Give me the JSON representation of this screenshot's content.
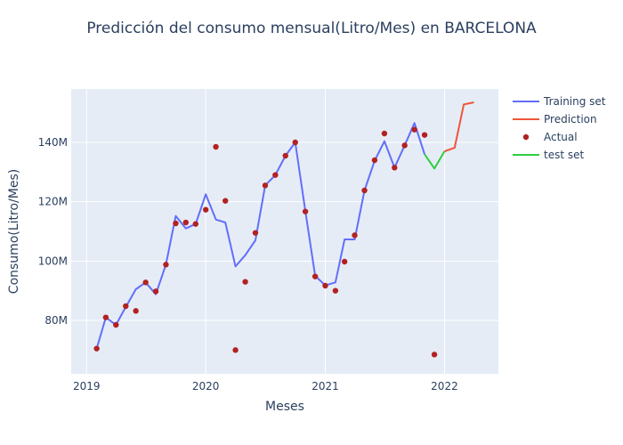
{
  "chart_data": {
    "type": "line",
    "title": "Predicción del consumo mensual(Litro/Mes) en BARCELONA",
    "xlabel": "Meses",
    "ylabel": "Consumo(Litro/Mes)",
    "x_range": [
      "2018-11-15",
      "2022-06-15"
    ],
    "ylim": [
      62000000,
      158000000
    ],
    "x_ticks": [
      {
        "date": "2019-01-01",
        "label": "2019"
      },
      {
        "date": "2020-01-01",
        "label": "2020"
      },
      {
        "date": "2021-01-01",
        "label": "2021"
      },
      {
        "date": "2022-01-01",
        "label": "2022"
      }
    ],
    "y_ticks": [
      {
        "value": 80000000,
        "label": "80M"
      },
      {
        "value": 100000000,
        "label": "100M"
      },
      {
        "value": 120000000,
        "label": "120M"
      },
      {
        "value": 140000000,
        "label": "140M"
      }
    ],
    "grid": true,
    "legend_position": "top-right outside",
    "colors": {
      "training": "#636efa",
      "prediction": "#ef553b",
      "actual": "#b22222",
      "test": "#2ecc40",
      "plot_bg": "#e5ecf6",
      "grid": "#ffffff",
      "text": "#2a3f5f"
    },
    "series": [
      {
        "name": "Training set",
        "mode": "line",
        "x": [
          "2019-02",
          "2019-03",
          "2019-04",
          "2019-05",
          "2019-06",
          "2019-07",
          "2019-08",
          "2019-09",
          "2019-10",
          "2019-11",
          "2019-12",
          "2020-01",
          "2020-02",
          "2020-03",
          "2020-04",
          "2020-05",
          "2020-06",
          "2020-07",
          "2020-08",
          "2020-09",
          "2020-10",
          "2020-11",
          "2020-12",
          "2021-01",
          "2021-02",
          "2021-03",
          "2021-04",
          "2021-05",
          "2021-06",
          "2021-07",
          "2021-08",
          "2021-09",
          "2021-10",
          "2021-11"
        ],
        "y": [
          70500000,
          81000000,
          78500000,
          84500000,
          90500000,
          92800000,
          88800000,
          98800000,
          115200000,
          111000000,
          112500000,
          122500000,
          114000000,
          113000000,
          98200000,
          102000000,
          107000000,
          125500000,
          129000000,
          135500000,
          140000000,
          116800000,
          95000000,
          91800000,
          92800000,
          107300000,
          107300000,
          123800000,
          133800000,
          140400000,
          131500000,
          139000000,
          146500000,
          136000000
        ]
      },
      {
        "name": "Prediction",
        "mode": "line",
        "x": [
          "2022-01",
          "2022-02",
          "2022-03",
          "2022-04"
        ],
        "y": [
          137000000,
          138200000,
          152800000,
          153500000
        ]
      },
      {
        "name": "Actual",
        "mode": "markers",
        "x": [
          "2019-02",
          "2019-03",
          "2019-04",
          "2019-05",
          "2019-06",
          "2019-07",
          "2019-08",
          "2019-09",
          "2019-10",
          "2019-11",
          "2019-12",
          "2020-01",
          "2020-02",
          "2020-03",
          "2020-04",
          "2020-05",
          "2020-06",
          "2020-07",
          "2020-08",
          "2020-09",
          "2020-10",
          "2020-11",
          "2020-12",
          "2021-01",
          "2021-02",
          "2021-03",
          "2021-04",
          "2021-05",
          "2021-06",
          "2021-07",
          "2021-08",
          "2021-09",
          "2021-10",
          "2021-11",
          "2021-12"
        ],
        "y": [
          70500000,
          81000000,
          78500000,
          84800000,
          83200000,
          92800000,
          89800000,
          98800000,
          112700000,
          113000000,
          112500000,
          117300000,
          138500000,
          120300000,
          70000000,
          93000000,
          109500000,
          125500000,
          129000000,
          135500000,
          140000000,
          116700000,
          94800000,
          91700000,
          90000000,
          99800000,
          108700000,
          123800000,
          134000000,
          143000000,
          131500000,
          139000000,
          144300000,
          142500000,
          68500000
        ]
      },
      {
        "name": "test set",
        "mode": "line",
        "x": [
          "2021-11",
          "2021-12",
          "2022-01"
        ],
        "y": [
          136000000,
          131200000,
          137000000
        ]
      }
    ]
  }
}
